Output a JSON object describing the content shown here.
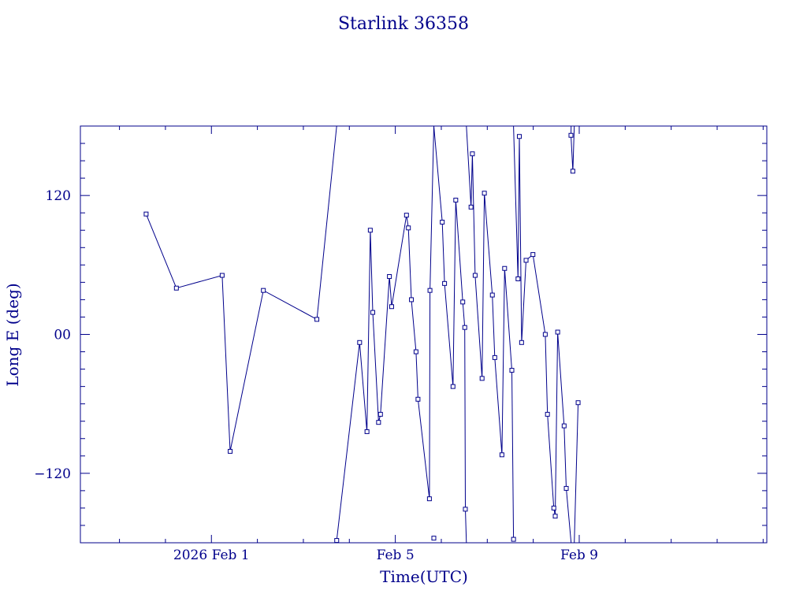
{
  "chart_data": {
    "type": "line",
    "title": "Starlink 36358",
    "xlabel": "Time(UTC)",
    "ylabel": "Long E (deg)",
    "x_unit": "days (2026 UTC)",
    "xlim": [
      "2026-01-29T03:36",
      "2026-02-13T01:55"
    ],
    "ylim": [
      -180,
      180
    ],
    "x_ticks": [
      {
        "value": "2026-02-01",
        "label": "2026 Feb  1"
      },
      {
        "value": "2026-02-05",
        "label": "Feb  5"
      },
      {
        "value": "2026-02-09",
        "label": "Feb  9"
      }
    ],
    "y_ticks": [
      {
        "value": 120,
        "label": "120"
      },
      {
        "value": 0,
        "label": "00"
      },
      {
        "value": -120,
        "label": "−120"
      }
    ],
    "grid": false,
    "line_color": "#00008b",
    "series": [
      {
        "points": [
          [
            "2026-01-30T13:55",
            104
          ],
          [
            "2026-01-31T05:43",
            40
          ],
          [
            "2026-02-01T05:36",
            51
          ],
          [
            "2026-02-01T09:47",
            -101
          ],
          [
            "2026-02-02T03:07",
            38
          ],
          [
            "2026-02-03T07:03",
            13
          ],
          [
            "2026-02-03T17:24",
            180
          ],
          null,
          [
            "2026-02-03T17:24",
            -178
          ],
          [
            "2026-02-04T05:22",
            -7
          ],
          [
            "2026-02-04T09:12",
            -84
          ],
          [
            "2026-02-04T10:56",
            90
          ],
          [
            "2026-02-04T12:14",
            19
          ],
          [
            "2026-02-04T15:15",
            -76
          ],
          [
            "2026-02-04T16:15",
            -69
          ],
          [
            "2026-02-04T20:55",
            50
          ],
          [
            "2026-02-04T22:05",
            24
          ],
          [
            "2026-02-05T05:50",
            103
          ],
          [
            "2026-02-05T06:49",
            92
          ],
          [
            "2026-02-05T08:24",
            30
          ],
          [
            "2026-02-05T10:48",
            -15
          ],
          [
            "2026-02-05T11:50",
            -56
          ],
          [
            "2026-02-05T17:48",
            -142
          ],
          [
            "2026-02-05T18:05",
            38
          ],
          [
            "2026-02-05T20:06",
            180
          ],
          null,
          [
            "2026-02-05T20:06",
            -176
          ],
          null,
          [
            "2026-02-05T20:06",
            180
          ],
          [
            "2026-02-06T00:30",
            97
          ],
          [
            "2026-02-06T01:42",
            44
          ],
          [
            "2026-02-06T06:06",
            -45
          ],
          [
            "2026-02-06T07:33",
            116
          ],
          [
            "2026-02-06T11:12",
            28
          ],
          [
            "2026-02-06T12:15",
            6
          ],
          [
            "2026-02-06T12:33",
            -151
          ],
          [
            "2026-02-06T13:05",
            -180
          ],
          null,
          [
            "2026-02-06T13:05",
            180
          ],
          [
            "2026-02-06T15:31",
            110
          ],
          [
            "2026-02-06T16:14",
            156
          ],
          [
            "2026-02-06T17:40",
            51
          ],
          [
            "2026-02-06T21:17",
            -38
          ],
          [
            "2026-02-06T22:29",
            122
          ],
          [
            "2026-02-07T02:39",
            34
          ],
          [
            "2026-02-07T03:55",
            -20
          ],
          [
            "2026-02-07T07:39",
            -104
          ],
          [
            "2026-02-07T09:03",
            57
          ],
          [
            "2026-02-07T12:50",
            -31
          ],
          [
            "2026-02-07T13:43",
            -177
          ],
          null,
          [
            "2026-02-07T13:43",
            180
          ],
          [
            "2026-02-07T16:03",
            48
          ],
          [
            "2026-02-07T16:44",
            171
          ],
          [
            "2026-02-07T17:55",
            -7
          ],
          [
            "2026-02-07T20:15",
            64
          ],
          [
            "2026-02-07T23:50",
            69
          ],
          [
            "2026-02-08T06:16",
            0
          ],
          [
            "2026-02-08T07:25",
            -69
          ],
          [
            "2026-02-08T10:44",
            -150
          ],
          [
            "2026-02-08T11:28",
            -157
          ],
          [
            "2026-02-08T12:45",
            2
          ],
          [
            "2026-02-08T16:07",
            -79
          ],
          [
            "2026-02-08T17:14",
            -133
          ],
          [
            "2026-02-08T19:46",
            -180
          ],
          null,
          [
            "2026-02-08T19:46",
            180
          ],
          [
            "2026-02-08T19:41",
            172
          ],
          [
            "2026-02-08T20:40",
            141
          ],
          [
            "2026-02-08T21:25",
            180
          ],
          null,
          [
            "2026-02-08T21:25",
            -180
          ],
          [
            "2026-02-08T23:25",
            -59
          ]
        ]
      }
    ]
  }
}
